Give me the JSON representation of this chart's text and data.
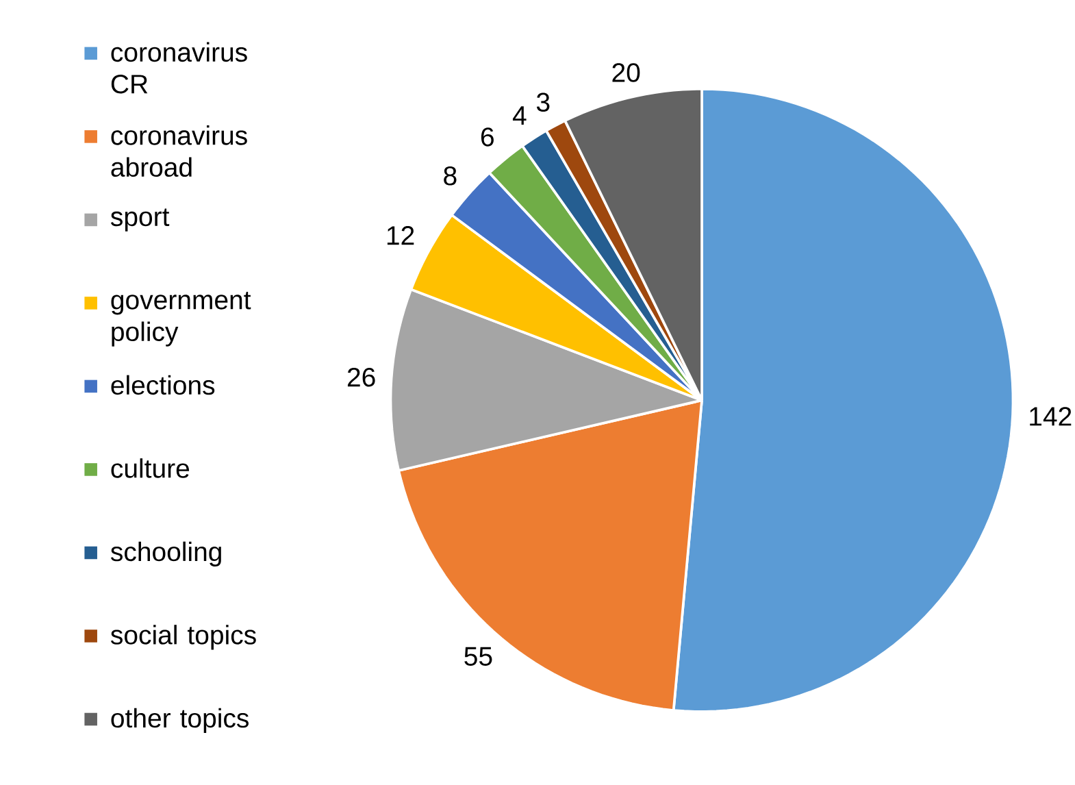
{
  "chart_data": {
    "type": "pie",
    "categories": [
      "coronavirus CR",
      "coronavirus abroad",
      "sport",
      "government policy",
      "elections",
      "culture",
      "schooling",
      "social topics",
      "other topics"
    ],
    "values": [
      142,
      55,
      26,
      12,
      8,
      6,
      4,
      3,
      20
    ],
    "colors": [
      "#5b9bd5",
      "#ed7d31",
      "#a5a5a5",
      "#ffc000",
      "#4472c4",
      "#70ad47",
      "#255e91",
      "#9e480e",
      "#636363"
    ],
    "data_labels": true,
    "legend": "left"
  }
}
